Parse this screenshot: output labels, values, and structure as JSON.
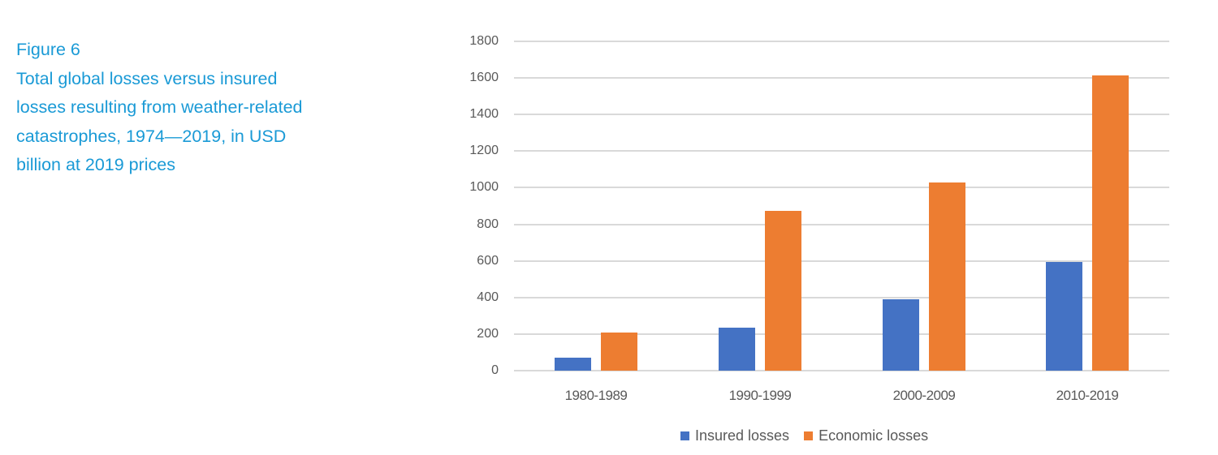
{
  "caption": {
    "figure_label": "Figure 6",
    "lines": [
      "Total global losses versus insured",
      "losses resulting from weather-related",
      "catastrophes, 1974—2019, in USD",
      "billion at 2019 prices"
    ]
  },
  "colors": {
    "caption": "#1a9ad6",
    "insured": "#4472c4",
    "economic": "#ed7d31",
    "grid": "#d9d9d9",
    "axis_text": "#595959"
  },
  "chart_data": {
    "type": "bar",
    "title": "Figure 6 — Total global losses versus insured losses resulting from weather-related catastrophes, 1974—2019, in USD billion at 2019 prices",
    "xlabel": "",
    "ylabel": "",
    "categories": [
      "1980-1989",
      "1990-1999",
      "2000-2009",
      "2010-2019"
    ],
    "series": [
      {
        "name": "Insured losses",
        "color": "#4472c4",
        "values": [
          70,
          235,
          390,
          595
        ]
      },
      {
        "name": "Economic losses",
        "color": "#ed7d31",
        "values": [
          210,
          875,
          1030,
          1615
        ]
      }
    ],
    "ylim": [
      0,
      1800
    ],
    "yticks": [
      0,
      200,
      400,
      600,
      800,
      1000,
      1200,
      1400,
      1600,
      1800
    ],
    "grid": true,
    "legend_position": "bottom"
  },
  "axis": {
    "yticks": [
      "1800",
      "1600",
      "1400",
      "1200",
      "1000",
      "800",
      "600",
      "400",
      "200",
      "0"
    ],
    "xticks": [
      "1980-1989",
      "1990-1999",
      "2000-2009",
      "2010-2019"
    ]
  },
  "legend": {
    "items": [
      {
        "label": "Insured losses"
      },
      {
        "label": "Economic losses"
      }
    ]
  }
}
